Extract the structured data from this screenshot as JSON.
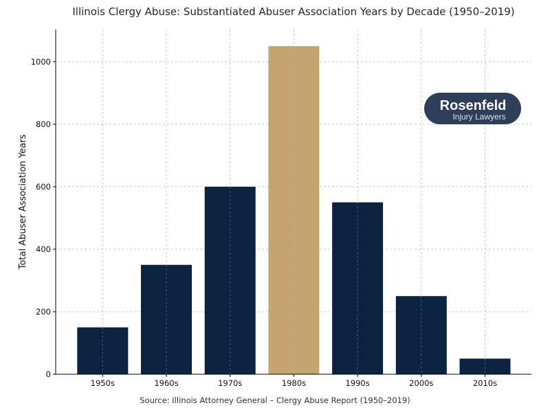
{
  "chart_data": {
    "type": "bar",
    "title": "Illinois Clergy Abuse: Substantiated Abuser Association Years by Decade (1950–2019)",
    "xlabel": "",
    "ylabel": "Total Abuser Association Years",
    "categories": [
      "1950s",
      "1960s",
      "1970s",
      "1980s",
      "1990s",
      "2000s",
      "2010s"
    ],
    "values": [
      150,
      350,
      600,
      1050,
      550,
      250,
      50
    ],
    "colors": [
      "#0b2240",
      "#0b2240",
      "#0b2240",
      "#c4a572",
      "#0b2240",
      "#0b2240",
      "#0b2240"
    ],
    "ylim": [
      0,
      1103
    ],
    "yticks": [
      0,
      200,
      400,
      600,
      800,
      1000
    ],
    "grid": true,
    "grid_style": "dashed",
    "caption": "Source: Illinois Attorney General – Clergy Abuse Report (1950–2019)"
  },
  "logo": {
    "text_main": "Rosenfeld",
    "text_sub": "Injury Lawyers",
    "bg_color": "#2e3d58"
  }
}
